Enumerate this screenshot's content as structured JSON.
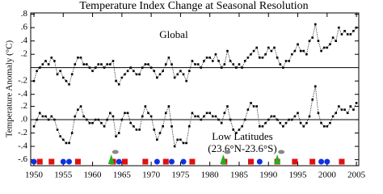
{
  "chart_data": {
    "type": "line",
    "title": "Temperature Index Change at Seasonal Resolution",
    "ylabel": "Temperature Anomaly (°C)",
    "xlim": [
      1949.45,
      2005.4
    ],
    "xticks": [
      1950,
      1955,
      1960,
      1965,
      1970,
      1975,
      1980,
      1985,
      1990,
      1995,
      2000,
      2005
    ],
    "x": [
      1950,
      1950.5,
      1951,
      1951.5,
      1952,
      1952.5,
      1953,
      1953.5,
      1954,
      1954.5,
      1955,
      1955.5,
      1956,
      1956.5,
      1957,
      1957.5,
      1958,
      1958.5,
      1959,
      1959.5,
      1960,
      1960.5,
      1961,
      1961.5,
      1962,
      1962.5,
      1963,
      1963.5,
      1964,
      1964.5,
      1965,
      1965.5,
      1966,
      1966.5,
      1967,
      1967.5,
      1968,
      1968.5,
      1969,
      1969.5,
      1970,
      1970.5,
      1971,
      1971.5,
      1972,
      1972.5,
      1973,
      1973.5,
      1974,
      1974.5,
      1975,
      1975.5,
      1976,
      1976.5,
      1977,
      1977.5,
      1978,
      1978.5,
      1979,
      1979.5,
      1980,
      1980.5,
      1981,
      1981.5,
      1982,
      1982.5,
      1983,
      1983.5,
      1984,
      1984.5,
      1985,
      1985.5,
      1986,
      1986.5,
      1987,
      1987.5,
      1988,
      1988.5,
      1989,
      1989.5,
      1990,
      1990.5,
      1991,
      1991.5,
      1992,
      1992.5,
      1993,
      1993.5,
      1994,
      1994.5,
      1995,
      1995.5,
      1996,
      1996.5,
      1997,
      1997.5,
      1998,
      1998.5,
      1999,
      1999.5,
      2000,
      2000.5,
      2001,
      2001.5,
      2002,
      2002.5,
      2003,
      2003.5,
      2004,
      2004.5,
      2005
    ],
    "panels": [
      {
        "label": [
          "Global"
        ],
        "ylim": [
          -0.44,
          0.82
        ],
        "yticks": [
          {
            "value": 0.8,
            "label": ".8"
          },
          {
            "value": 0.6,
            "label": ".6"
          },
          {
            "value": 0.4,
            "label": ".4"
          },
          {
            "value": 0.2,
            "label": ".2"
          },
          {
            "value": -0.2,
            "label": "-.2"
          },
          {
            "value": -0.4,
            "label": "-.4"
          }
        ],
        "series": [
          {
            "color": "#000000",
            "values": [
              -0.2,
              -0.05,
              0.0,
              0.05,
              0.1,
              0.05,
              0.15,
              0.1,
              -0.1,
              -0.05,
              -0.15,
              -0.2,
              -0.25,
              -0.1,
              0.05,
              0.15,
              0.15,
              0.05,
              0.05,
              0.0,
              -0.05,
              0.0,
              0.05,
              0.05,
              0.0,
              0.05,
              0.05,
              0.1,
              -0.2,
              -0.25,
              -0.15,
              -0.1,
              -0.05,
              0.0,
              -0.05,
              -0.1,
              -0.1,
              0.0,
              0.05,
              0.05,
              0.0,
              -0.05,
              -0.15,
              -0.1,
              -0.05,
              0.05,
              0.15,
              0.05,
              -0.15,
              -0.1,
              -0.05,
              -0.1,
              -0.2,
              -0.05,
              0.1,
              0.05,
              0.05,
              0.0,
              0.1,
              0.15,
              0.15,
              0.1,
              0.2,
              0.1,
              0.0,
              0.05,
              0.25,
              0.1,
              0.05,
              0.0,
              0.05,
              0.0,
              0.1,
              0.15,
              0.2,
              0.25,
              0.3,
              0.15,
              0.15,
              0.2,
              0.3,
              0.25,
              0.3,
              0.15,
              0.05,
              0.0,
              0.1,
              0.1,
              0.2,
              0.25,
              0.35,
              0.25,
              0.25,
              0.2,
              0.4,
              0.45,
              0.65,
              0.4,
              0.25,
              0.3,
              0.3,
              0.35,
              0.45,
              0.4,
              0.6,
              0.5,
              0.55,
              0.5,
              0.5,
              0.55,
              0.6
            ]
          }
        ]
      },
      {
        "label": [
          "Low Latitudes",
          "(23.6°N-23.6°S)"
        ],
        "ylim": [
          -0.69,
          0.34
        ],
        "yticks": [
          {
            "value": 0.2,
            "label": ".2"
          },
          {
            "value": 0,
            "label": ".0"
          },
          {
            "value": -0.2,
            "label": "-.2"
          },
          {
            "value": -0.4,
            "label": "-.4"
          },
          {
            "value": -0.6,
            "label": "-.6"
          }
        ],
        "series": [
          {
            "color": "#000000",
            "values": [
              -0.1,
              0.0,
              0.1,
              0.05,
              0.05,
              0.0,
              0.05,
              0.0,
              -0.15,
              -0.25,
              -0.3,
              -0.35,
              -0.35,
              -0.2,
              0.05,
              0.15,
              0.2,
              0.05,
              0.0,
              -0.05,
              -0.05,
              0.0,
              0.0,
              -0.05,
              -0.1,
              0.0,
              0.1,
              0.05,
              -0.25,
              -0.2,
              0.0,
              0.1,
              0.1,
              -0.05,
              -0.1,
              -0.15,
              -0.15,
              0.05,
              0.2,
              0.1,
              0.05,
              -0.15,
              -0.3,
              -0.2,
              -0.1,
              0.1,
              0.2,
              -0.1,
              -0.4,
              -0.3,
              -0.3,
              -0.35,
              -0.35,
              -0.1,
              0.1,
              0.05,
              0.05,
              0.0,
              0.05,
              0.1,
              0.1,
              0.05,
              0.05,
              0.0,
              -0.05,
              0.1,
              0.2,
              0.0,
              -0.15,
              -0.2,
              -0.15,
              -0.1,
              0.0,
              0.15,
              0.25,
              0.2,
              0.2,
              -0.1,
              -0.1,
              -0.05,
              0.0,
              0.05,
              0.05,
              0.0,
              -0.05,
              -0.1,
              -0.05,
              0.0,
              0.0,
              0.05,
              0.1,
              -0.05,
              -0.1,
              -0.05,
              0.05,
              0.3,
              0.5,
              0.1,
              -0.05,
              -0.1,
              -0.1,
              -0.05,
              0.05,
              0.1,
              0.2,
              0.15,
              0.15,
              0.1,
              0.2,
              0.15,
              0.25
            ]
          }
        ]
      }
    ],
    "events": [
      {
        "shape": "square",
        "color": "#e01010",
        "x": [
          1951,
          1953,
          1957.5,
          1963.5,
          1965.5,
          1969,
          1972.5,
          1977,
          1982.5,
          1987,
          1991.5,
          1994.5,
          1997.5,
          2002.5
        ]
      },
      {
        "shape": "circle",
        "color": "#1030e0",
        "x": [
          1950,
          1955,
          1956,
          1964.5,
          1971,
          1973.5,
          1975.5,
          1988.5,
          1999,
          2000
        ]
      },
      {
        "shape": "triangle",
        "color": "#20b020",
        "x": [
          1963.2,
          1982.3,
          1991.5
        ]
      }
    ]
  }
}
